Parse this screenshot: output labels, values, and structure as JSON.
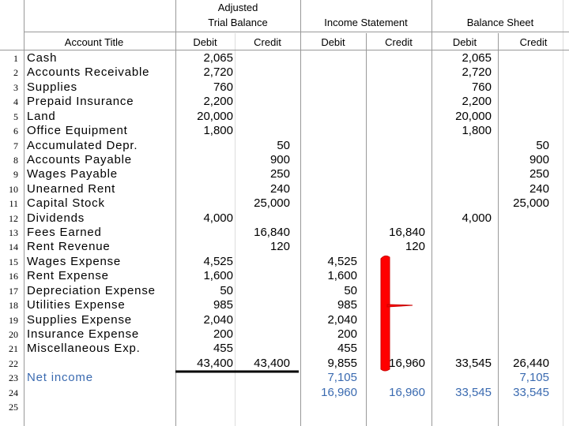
{
  "header": {
    "groups": [
      [
        "Adjusted",
        "Trial Balance"
      ],
      [
        "Income Statement"
      ],
      [
        "Balance Sheet"
      ]
    ],
    "account_title": "Account Title",
    "columns": [
      "Debit",
      "Credit",
      "Debit",
      "Credit",
      "Debit",
      "Credit"
    ]
  },
  "table": {
    "rows": [
      [
        "1",
        "Cash",
        "2,065",
        null,
        null,
        null,
        "2,065",
        null
      ],
      [
        "2",
        "Accounts Receivable",
        "2,720",
        null,
        null,
        null,
        "2,720",
        null
      ],
      [
        "3",
        "Supplies",
        "760",
        null,
        null,
        null,
        "760",
        null
      ],
      [
        "4",
        "Prepaid Insurance",
        "2,200",
        null,
        null,
        null,
        "2,200",
        null
      ],
      [
        "5",
        "Land",
        "20,000",
        null,
        null,
        null,
        "20,000",
        null
      ],
      [
        "6",
        "Office Equipment",
        "1,800",
        null,
        null,
        null,
        "1,800",
        null
      ],
      [
        "7",
        "Accumulated Depr.",
        null,
        "50",
        null,
        null,
        null,
        "50"
      ],
      [
        "8",
        "Accounts Payable",
        null,
        "900",
        null,
        null,
        null,
        "900"
      ],
      [
        "9",
        "Wages Payable",
        null,
        "250",
        null,
        null,
        null,
        "250"
      ],
      [
        "10",
        "Unearned Rent",
        null,
        "240",
        null,
        null,
        null,
        "240"
      ],
      [
        "11",
        "Capital Stock",
        null,
        "25,000",
        null,
        null,
        null,
        "25,000"
      ],
      [
        "12",
        "Dividends",
        "4,000",
        null,
        null,
        null,
        "4,000",
        null
      ],
      [
        "13",
        "Fees Earned",
        null,
        "16,840",
        null,
        "16,840",
        null,
        null
      ],
      [
        "14",
        "Rent Revenue",
        null,
        "120",
        null,
        "120",
        null,
        null
      ],
      [
        "15",
        "Wages Expense",
        "4,525",
        null,
        "4,525",
        null,
        null,
        null
      ],
      [
        "16",
        "Rent Expense",
        "1,600",
        null,
        "1,600",
        null,
        null,
        null
      ],
      [
        "17",
        "Depreciation Expense",
        "50",
        null,
        "50",
        null,
        null,
        null
      ],
      [
        "18",
        "Utilities Expense",
        "985",
        null,
        "985",
        null,
        null,
        null
      ],
      [
        "19",
        "Supplies Expense",
        "2,040",
        null,
        "2,040",
        null,
        null,
        null
      ],
      [
        "20",
        "Insurance Expense",
        "200",
        null,
        "200",
        null,
        null,
        null
      ],
      [
        "21",
        "Miscellaneous Exp.",
        "455",
        null,
        "455",
        null,
        null,
        null
      ],
      [
        "22",
        null,
        "43,400",
        "43,400",
        "9,855",
        "16,960",
        "33,545",
        "26,440"
      ],
      [
        "23",
        "Net income",
        null,
        null,
        "7,105",
        null,
        null,
        "7,105"
      ],
      [
        "24",
        null,
        null,
        null,
        "16,960",
        "16,960",
        "33,545",
        "33,545"
      ],
      [
        "25",
        null,
        null,
        null,
        null,
        null,
        null,
        null
      ]
    ]
  }
}
